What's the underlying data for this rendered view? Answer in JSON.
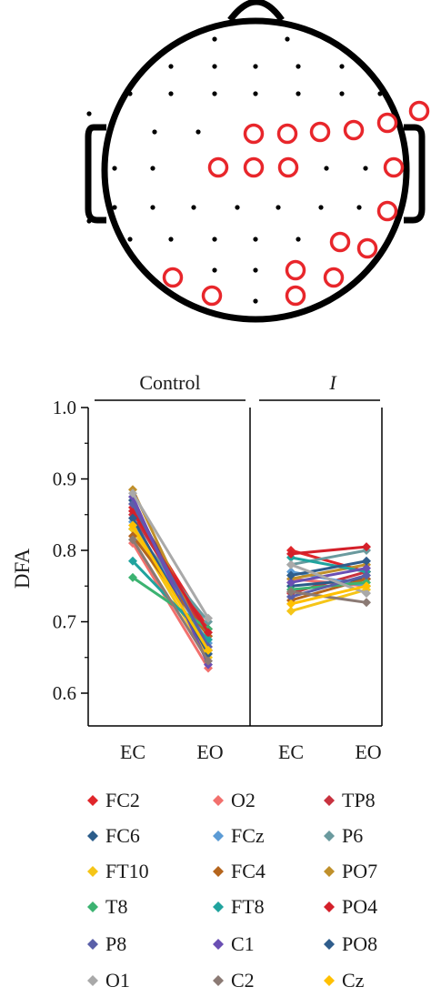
{
  "electrode_map": {
    "head_outline_color": "#000000",
    "marker_color": "#e8262b",
    "electrode_dot_color": "#000000"
  },
  "chart_data": {
    "type": "line",
    "ylabel": "DFA",
    "xlabel": "",
    "ylim": [
      0.6,
      1.0
    ],
    "yticks": [
      0.6,
      0.7,
      0.8,
      0.9,
      1.0
    ],
    "ytick_labels": [
      "0.6",
      "0.7",
      "0.8",
      "0.9",
      "1.0"
    ],
    "categories": [
      "EC",
      "EO"
    ],
    "panels": [
      {
        "title": "Control",
        "title_italic": false
      },
      {
        "title": "I",
        "title_italic": true
      }
    ],
    "series": [
      {
        "name": "FC2",
        "color": "#e0262b",
        "control": [
          0.86,
          0.69
        ],
        "I": [
          0.8,
          0.77
        ]
      },
      {
        "name": "O2",
        "color": "#f2706d",
        "control": [
          0.81,
          0.635
        ],
        "I": [
          0.76,
          0.75
        ]
      },
      {
        "name": "TP8",
        "color": "#c8323f",
        "control": [
          0.85,
          0.68
        ],
        "I": [
          0.74,
          0.77
        ]
      },
      {
        "name": "FC6",
        "color": "#2b5c8a",
        "control": [
          0.87,
          0.66
        ],
        "I": [
          0.75,
          0.76
        ]
      },
      {
        "name": "FCz",
        "color": "#5b9bd5",
        "control": [
          0.84,
          0.67
        ],
        "I": [
          0.77,
          0.75
        ]
      },
      {
        "name": "P6",
        "color": "#6a9a9e",
        "control": [
          0.83,
          0.7
        ],
        "I": [
          0.78,
          0.8
        ]
      },
      {
        "name": "FT10",
        "color": "#f5c518",
        "control": [
          0.83,
          0.65
        ],
        "I": [
          0.715,
          0.745
        ]
      },
      {
        "name": "FC4",
        "color": "#b5651d",
        "control": [
          0.82,
          0.68
        ],
        "I": [
          0.73,
          0.76
        ]
      },
      {
        "name": "PO7",
        "color": "#c0902b",
        "control": [
          0.885,
          0.66
        ],
        "I": [
          0.76,
          0.78
        ]
      },
      {
        "name": "T8",
        "color": "#3cb371",
        "control": [
          0.762,
          0.69
        ],
        "I": [
          0.745,
          0.755
        ]
      },
      {
        "name": "FT8",
        "color": "#20a39e",
        "control": [
          0.785,
          0.675
        ],
        "I": [
          0.79,
          0.77
        ]
      },
      {
        "name": "PO4",
        "color": "#d4202a",
        "control": [
          0.855,
          0.685
        ],
        "I": [
          0.795,
          0.805
        ]
      },
      {
        "name": "P8",
        "color": "#5a5fa8",
        "control": [
          0.865,
          0.665
        ],
        "I": [
          0.735,
          0.765
        ]
      },
      {
        "name": "C1",
        "color": "#6a4fb3",
        "control": [
          0.875,
          0.64
        ],
        "I": [
          0.755,
          0.775
        ]
      },
      {
        "name": "PO8",
        "color": "#2f5d8c",
        "control": [
          0.845,
          0.655
        ],
        "I": [
          0.765,
          0.785
        ]
      },
      {
        "name": "O1",
        "color": "#a9a9a9",
        "control": [
          0.88,
          0.705
        ],
        "I": [
          0.78,
          0.74
        ]
      },
      {
        "name": "C2",
        "color": "#8b7a74",
        "control": [
          0.815,
          0.645
        ],
        "I": [
          0.742,
          0.727
        ]
      },
      {
        "name": "Cz",
        "color": "#ffc000",
        "control": [
          0.835,
          0.66
        ],
        "I": [
          0.725,
          0.75
        ]
      }
    ]
  }
}
